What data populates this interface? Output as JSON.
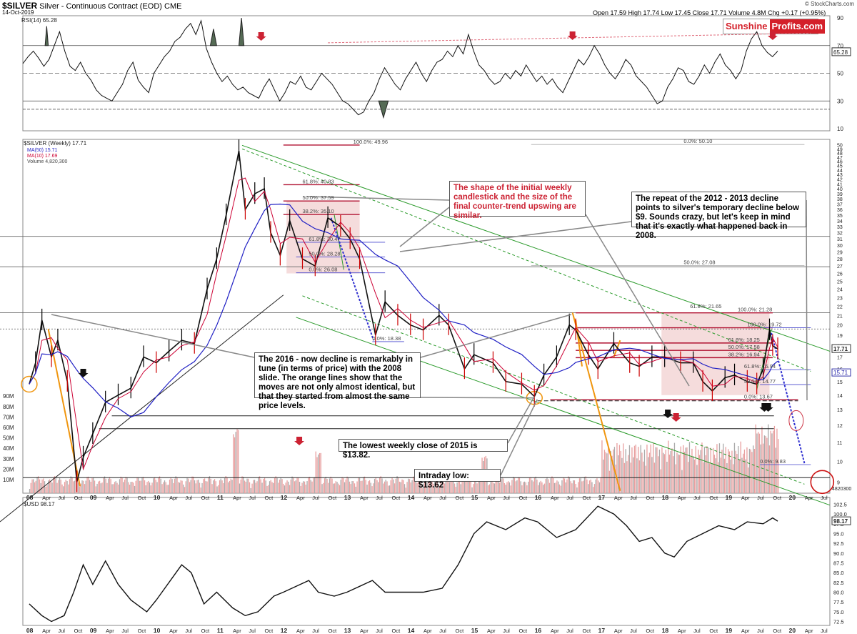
{
  "header": {
    "symbol": "$SILVER",
    "name": "Silver - Continuous Contract (EOD)",
    "exchange": "CME",
    "date": "14-Oct-2019",
    "quote": "Open 17.59  High 17.74  Low 17.45  Close 17.71  Volume 4.8M  Chg +0.17 (+0.95%)",
    "credit": "© StockCharts.com"
  },
  "logo": {
    "part1": "Sunshine",
    "part2": "Profits.com"
  },
  "legends": {
    "rsi": "RSI(14) 65.28",
    "price": "$SILVER (Weekly) 17.71",
    "ma50": "MA(50) 15.71",
    "ma10": "MA(10) 17.69",
    "volume": "Volume 4,820,300",
    "usd": "$USD 98.17"
  },
  "annotations": {
    "shape_note": "The shape of the initial weekly candlestick and the size of the final counter-trend upswing are similar.",
    "repeat_note": "The repeat of the 2012 - 2013 decline points to silver's temporary decline below $9. Sounds crazy, but let's keep in mind that it's exactly what happened back in 2008.",
    "tune_note": "The 2016 - now decline is remarkably in tune (in terms of price) with the 2008 slide. The orange lines show that the moves are not only almost identical, but that they started from almost the same price levels.",
    "lowest_note": "The lowest weekly close of 2015 is $13.82.",
    "intraday_note": "Intraday low: $13.62"
  },
  "fib_labels": [
    "100.0%: 49.96",
    "61.8%: 40.83",
    "50.0%: 37.59",
    "38.2%: 35.10",
    "61.8%: 30.47",
    "50.0%: 28.28",
    "0.0%: 26.08",
    "0.0%: 18.38",
    "0.0%: 50.10",
    "50.0%: 27.08",
    "61.8%: 21.65",
    "100.0%: 21.28",
    "100.0%: 19.72",
    "61.8%: 18.25",
    "50.0%: 17.58",
    "38.2%: 16.94",
    "61.8%: 15.94",
    "50.0%: 14.77",
    "0.0%: 13.67",
    "0.0%: 9.83"
  ],
  "badges": {
    "rsi": "65.28",
    "price": "17.71",
    "ma50": "15.71",
    "vol": "4820300",
    "usd": "98.17"
  },
  "colors": {
    "bull_candle": "#000000",
    "bear_candle": "#cc0000",
    "ma10": "#cc0033",
    "ma50": "#1f1fc4",
    "fib_red": "#b01030",
    "fib_blue": "#4444cc",
    "channel_green": "#2a9a2a",
    "orange": "#f0960f",
    "highlight_zone": "#f3d3d3",
    "arrow_red": "#cc2233"
  },
  "chart_data": [
    {
      "type": "line",
      "title": "RSI(14)",
      "y_ticks": [
        10,
        30,
        50,
        70,
        90
      ],
      "ylim": [
        10,
        90
      ],
      "reference_lines": [
        30,
        50,
        70
      ],
      "last_value": 65.28,
      "values": [
        57,
        62,
        66,
        61,
        55,
        60,
        70,
        80,
        66,
        55,
        52,
        58,
        50,
        45,
        38,
        34,
        32,
        30,
        36,
        42,
        52,
        58,
        45,
        40,
        36,
        50,
        56,
        62,
        66,
        73,
        76,
        82,
        86,
        78,
        88,
        68,
        58,
        50,
        44,
        48,
        42,
        38,
        40,
        36,
        34,
        32,
        40,
        46,
        38,
        30,
        36,
        44,
        42,
        48,
        40,
        38,
        44,
        50,
        46,
        42,
        36,
        30,
        28,
        24,
        20,
        22,
        30,
        36,
        46,
        54,
        48,
        42,
        38,
        46,
        52,
        58,
        50,
        44,
        52,
        58,
        60,
        66,
        62,
        70,
        64,
        78,
        66,
        56,
        52,
        46,
        42,
        44,
        50,
        46,
        52,
        48,
        56,
        50,
        44,
        48,
        42,
        46,
        40,
        36,
        44,
        52,
        60,
        56,
        62,
        70,
        64,
        56,
        50,
        46,
        52,
        60,
        56,
        48,
        44,
        40,
        34,
        28,
        30,
        40,
        46,
        54,
        52,
        44,
        42,
        48,
        56,
        50,
        58,
        64,
        56,
        52,
        46,
        52,
        66,
        75,
        80,
        70,
        65,
        62,
        66
      ]
    },
    {
      "type": "line",
      "title": "$SILVER (Weekly)",
      "x_labels": [
        "08",
        "Apr",
        "Jul",
        "Oct",
        "09",
        "Apr",
        "Jul",
        "Oct",
        "10",
        "Apr",
        "Jul",
        "Oct",
        "11",
        "Apr",
        "Jul",
        "Oct",
        "12",
        "Apr",
        "Jul",
        "Oct",
        "13",
        "Apr",
        "Jul",
        "Oct",
        "14",
        "Apr",
        "Jul",
        "Oct",
        "15",
        "Apr",
        "Jul",
        "Oct",
        "16",
        "Apr",
        "Jul",
        "Oct",
        "17",
        "Apr",
        "Jul",
        "Oct",
        "18",
        "Apr",
        "Jul",
        "Oct",
        "19",
        "Apr",
        "Jul",
        "Oct",
        "20",
        "Apr",
        "Jul"
      ],
      "y_ticks": [
        9,
        10,
        11,
        12,
        13,
        14,
        15,
        16,
        17,
        18,
        19,
        20,
        21,
        22,
        23,
        24,
        25,
        26,
        27,
        28,
        29,
        30,
        31,
        32,
        33,
        34,
        35,
        36,
        37,
        38,
        39,
        40,
        41,
        42,
        43,
        44,
        45,
        46,
        47,
        48,
        49,
        50
      ],
      "ylim": [
        8.5,
        50.5
      ],
      "close_points": [
        [
          2008.0,
          14.8
        ],
        [
          2008.1,
          16.5
        ],
        [
          2008.2,
          20.5
        ],
        [
          2008.35,
          17.0
        ],
        [
          2008.45,
          18.5
        ],
        [
          2008.6,
          15.0
        ],
        [
          2008.75,
          9.0
        ],
        [
          2008.85,
          10.2
        ],
        [
          2009.0,
          11.5
        ],
        [
          2009.2,
          13.5
        ],
        [
          2009.4,
          14.0
        ],
        [
          2009.6,
          14.5
        ],
        [
          2009.8,
          17.0
        ],
        [
          2010.0,
          16.5
        ],
        [
          2010.2,
          17.5
        ],
        [
          2010.4,
          18.5
        ],
        [
          2010.6,
          18.2
        ],
        [
          2010.8,
          24.0
        ],
        [
          2010.95,
          28.0
        ],
        [
          2011.1,
          35.0
        ],
        [
          2011.3,
          48.5
        ],
        [
          2011.4,
          36.0
        ],
        [
          2011.55,
          39.0
        ],
        [
          2011.7,
          40.0
        ],
        [
          2011.8,
          32.0
        ],
        [
          2011.95,
          28.5
        ],
        [
          2012.1,
          34.0
        ],
        [
          2012.3,
          28.0
        ],
        [
          2012.5,
          27.0
        ],
        [
          2012.7,
          34.5
        ],
        [
          2012.9,
          33.0
        ],
        [
          2013.05,
          31.0
        ],
        [
          2013.2,
          28.0
        ],
        [
          2013.45,
          19.0
        ],
        [
          2013.6,
          22.5
        ],
        [
          2013.8,
          21.0
        ],
        [
          2014.0,
          20.0
        ],
        [
          2014.2,
          19.5
        ],
        [
          2014.45,
          21.0
        ],
        [
          2014.6,
          20.0
        ],
        [
          2014.85,
          16.0
        ],
        [
          2015.0,
          17.2
        ],
        [
          2015.3,
          16.5
        ],
        [
          2015.5,
          15.0
        ],
        [
          2015.75,
          14.8
        ],
        [
          2015.95,
          13.9
        ],
        [
          2016.1,
          15.5
        ],
        [
          2016.3,
          17.0
        ],
        [
          2016.5,
          20.0
        ],
        [
          2016.6,
          19.5
        ],
        [
          2016.8,
          17.2
        ],
        [
          2016.95,
          16.0
        ],
        [
          2017.2,
          18.2
        ],
        [
          2017.45,
          16.5
        ],
        [
          2017.6,
          16.2
        ],
        [
          2017.8,
          17.0
        ],
        [
          2018.0,
          17.0
        ],
        [
          2018.25,
          16.5
        ],
        [
          2018.45,
          16.5
        ],
        [
          2018.6,
          15.0
        ],
        [
          2018.75,
          14.3
        ],
        [
          2018.95,
          15.3
        ],
        [
          2019.1,
          15.5
        ],
        [
          2019.3,
          15.0
        ],
        [
          2019.45,
          14.8
        ],
        [
          2019.55,
          16.0
        ],
        [
          2019.65,
          19.5
        ],
        [
          2019.7,
          18.0
        ],
        [
          2019.78,
          17.71
        ]
      ],
      "ma50_last": 15.71,
      "ma10_last": 17.69,
      "last_close": 17.71
    },
    {
      "type": "bar",
      "title": "Volume",
      "y_ticks": [
        "10M",
        "20M",
        "30M",
        "40M",
        "50M",
        "60M",
        "70M",
        "80M",
        "90M"
      ],
      "ylim": [
        0,
        90000000
      ],
      "last_value": 4820300
    },
    {
      "type": "line",
      "title": "$USD",
      "y_ticks": [
        72.5,
        75.0,
        77.5,
        80.0,
        82.5,
        85.0,
        87.5,
        90.0,
        92.5,
        95.0,
        97.5,
        100.0,
        102.5
      ],
      "ylim": [
        71.5,
        103.5
      ],
      "last_value": 98.17,
      "points": [
        [
          2008.0,
          77
        ],
        [
          2008.2,
          74
        ],
        [
          2008.35,
          72.5
        ],
        [
          2008.55,
          74
        ],
        [
          2008.7,
          80
        ],
        [
          2008.85,
          87
        ],
        [
          2009.0,
          82
        ],
        [
          2009.2,
          88
        ],
        [
          2009.4,
          82
        ],
        [
          2009.6,
          78
        ],
        [
          2009.85,
          75
        ],
        [
          2010.0,
          78
        ],
        [
          2010.4,
          87
        ],
        [
          2010.55,
          85
        ],
        [
          2010.75,
          77
        ],
        [
          2010.95,
          80
        ],
        [
          2011.2,
          76
        ],
        [
          2011.4,
          74
        ],
        [
          2011.6,
          75
        ],
        [
          2011.85,
          79
        ],
        [
          2012.0,
          80
        ],
        [
          2012.4,
          83
        ],
        [
          2012.55,
          80
        ],
        [
          2012.8,
          79
        ],
        [
          2013.0,
          80
        ],
        [
          2013.4,
          83
        ],
        [
          2013.6,
          80
        ],
        [
          2013.85,
          80
        ],
        [
          2014.2,
          80
        ],
        [
          2014.5,
          81
        ],
        [
          2014.75,
          87
        ],
        [
          2015.0,
          95
        ],
        [
          2015.2,
          98
        ],
        [
          2015.5,
          96
        ],
        [
          2015.8,
          99
        ],
        [
          2016.0,
          98
        ],
        [
          2016.3,
          94
        ],
        [
          2016.6,
          96
        ],
        [
          2016.95,
          102
        ],
        [
          2017.2,
          100
        ],
        [
          2017.4,
          97
        ],
        [
          2017.6,
          93
        ],
        [
          2017.8,
          94
        ],
        [
          2018.0,
          90
        ],
        [
          2018.15,
          89
        ],
        [
          2018.35,
          93
        ],
        [
          2018.6,
          95
        ],
        [
          2018.85,
          97
        ],
        [
          2019.1,
          96
        ],
        [
          2019.3,
          98
        ],
        [
          2019.55,
          97.5
        ],
        [
          2019.7,
          99
        ],
        [
          2019.78,
          98.17
        ]
      ]
    }
  ]
}
